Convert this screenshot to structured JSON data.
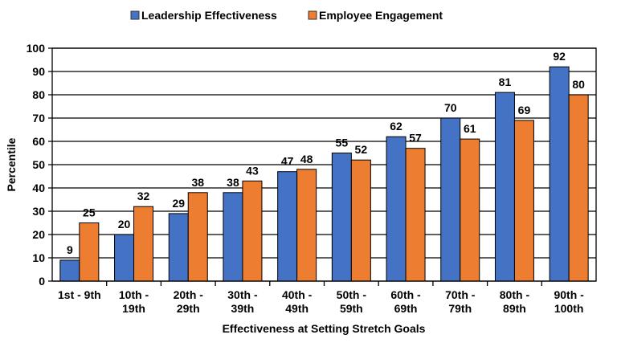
{
  "chart_data": {
    "type": "bar",
    "title": "",
    "xlabel": "Effectiveness at Setting Stretch Goals",
    "ylabel": "Percentile",
    "ylim": [
      0,
      100
    ],
    "yticks": [
      0,
      10,
      20,
      30,
      40,
      50,
      60,
      70,
      80,
      90,
      100
    ],
    "grid": true,
    "legend_position": "top",
    "categories": [
      [
        "1st - 9th"
      ],
      [
        "10th -",
        "19th"
      ],
      [
        "20th -",
        "29th"
      ],
      [
        "30th -",
        "39th"
      ],
      [
        "40th -",
        "49th"
      ],
      [
        "50th -",
        "59th"
      ],
      [
        "60th -",
        "69th"
      ],
      [
        "70th -",
        "79th"
      ],
      [
        "80th -",
        "89th"
      ],
      [
        "90th -",
        "100th"
      ]
    ],
    "series": [
      {
        "name": "Leadership Effectiveness",
        "color": "#4472C4",
        "values": [
          9,
          20,
          29,
          38,
          47,
          55,
          62,
          70,
          81,
          92
        ]
      },
      {
        "name": "Employee Engagement",
        "color": "#ED7D31",
        "values": [
          25,
          32,
          38,
          43,
          48,
          52,
          57,
          61,
          69,
          80
        ]
      }
    ]
  }
}
